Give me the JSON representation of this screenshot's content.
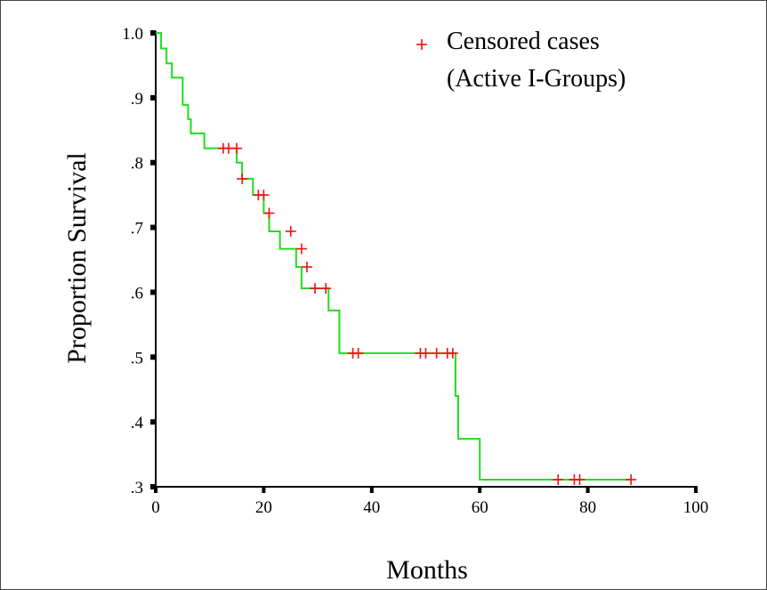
{
  "chart_data": {
    "type": "line",
    "title": "",
    "xlabel": "Months",
    "ylabel": "Proportion Survival",
    "xlim": [
      0,
      100
    ],
    "ylim": [
      0.3,
      1.0
    ],
    "x_ticks": [
      0,
      20,
      40,
      60,
      80,
      100
    ],
    "x_tick_labels": [
      "0",
      "20",
      "40",
      "60",
      "80",
      "100"
    ],
    "y_ticks": [
      0.3,
      0.4,
      0.5,
      0.6,
      0.7,
      0.8,
      0.9,
      1.0
    ],
    "y_tick_labels": [
      ".3",
      ".4",
      ".5",
      ".6",
      ".7",
      ".8",
      ".9",
      "1.0"
    ],
    "grid": false,
    "legend": {
      "position": "top-right",
      "marker_symbol": "+",
      "line1": "Censored cases",
      "line2": "(Active I-Groups)"
    },
    "colors": {
      "survival_line": "#22dd22",
      "censored_marker": "#ee1111",
      "axis": "#000000"
    },
    "series": [
      {
        "style": "step",
        "x": [
          0,
          1,
          2,
          3,
          5,
          6,
          6.5,
          9,
          15,
          16,
          18,
          20,
          21,
          23,
          26,
          27,
          29,
          32,
          34,
          55.5,
          56,
          60,
          88
        ],
        "y": [
          1.0,
          0.976,
          0.953,
          0.931,
          0.889,
          0.867,
          0.845,
          0.822,
          0.8,
          0.775,
          0.75,
          0.722,
          0.694,
          0.667,
          0.639,
          0.606,
          0.606,
          0.572,
          0.506,
          0.44,
          0.374,
          0.311,
          0.311
        ]
      }
    ],
    "censored": {
      "x": [
        12.5,
        13.5,
        15,
        16,
        19,
        20,
        21,
        25,
        27,
        28,
        29.5,
        31.5,
        36.5,
        37.5,
        49,
        50,
        52,
        54,
        55,
        74.5,
        77.5,
        78.5,
        88
      ],
      "y": [
        0.822,
        0.822,
        0.822,
        0.775,
        0.75,
        0.75,
        0.722,
        0.694,
        0.667,
        0.639,
        0.606,
        0.606,
        0.506,
        0.506,
        0.506,
        0.506,
        0.506,
        0.506,
        0.506,
        0.311,
        0.311,
        0.311,
        0.311
      ]
    }
  }
}
